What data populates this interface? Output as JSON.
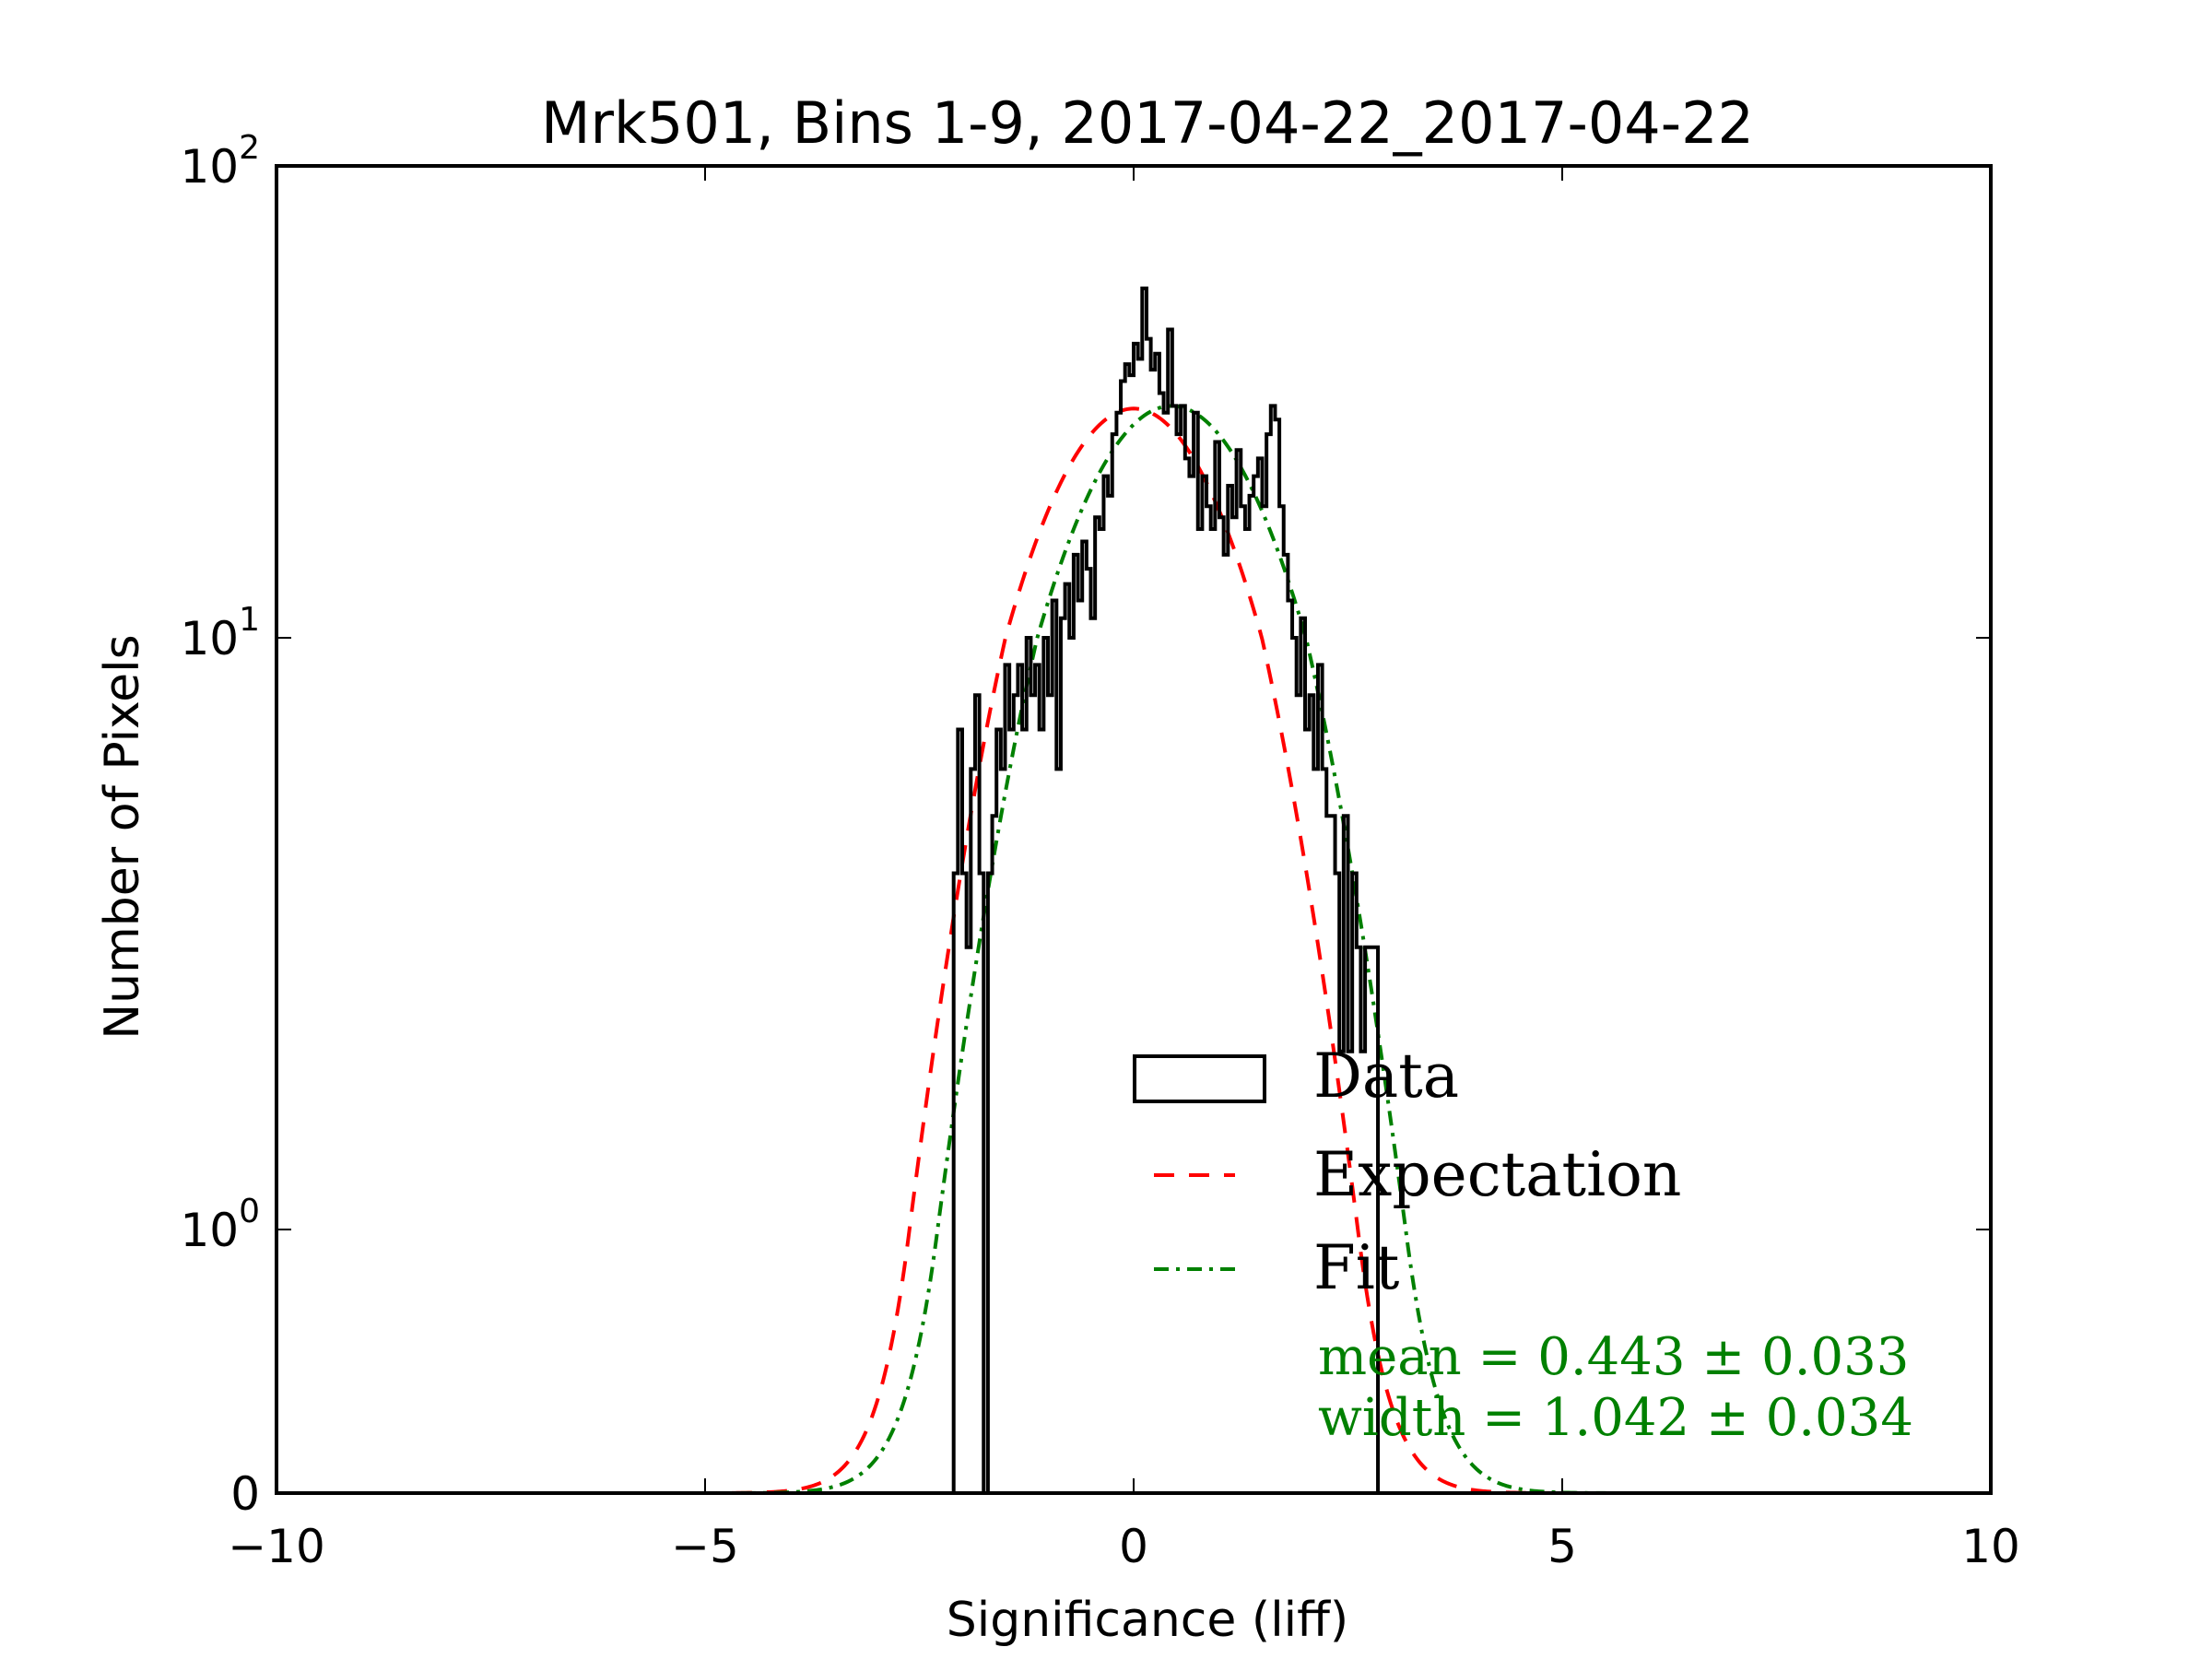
{
  "chart_data": {
    "type": "bar",
    "title": "Mrk501, Bins 1-9, 2017-04-22_2017-04-22",
    "xlabel": "Significance (liff)",
    "ylabel": "Number of Pixels",
    "xlim": [
      -10,
      10
    ],
    "ylim": [
      0,
      100
    ],
    "yscale": "symlog",
    "grid": false,
    "x_ticks": [
      {
        "value": -10,
        "label": "−10"
      },
      {
        "value": -5,
        "label": "−5"
      },
      {
        "value": 0,
        "label": "0"
      },
      {
        "value": 5,
        "label": "5"
      },
      {
        "value": 10,
        "label": "10"
      }
    ],
    "y_ticks": [
      {
        "value": 0,
        "label": "0",
        "base": "",
        "exp": ""
      },
      {
        "value": 1,
        "label": "10^0",
        "base": "10",
        "exp": "0"
      },
      {
        "value": 10,
        "label": "10^1",
        "base": "10",
        "exp": "1"
      },
      {
        "value": 100,
        "label": "10^2",
        "base": "10",
        "exp": "2"
      }
    ],
    "histogram": {
      "name": "Data",
      "color": "#000000",
      "bin_start": -2.1,
      "bin_width": 0.05,
      "counts": [
        4,
        7,
        4,
        3,
        6,
        8,
        4,
        0,
        4,
        5,
        7,
        6,
        9,
        7,
        8,
        9,
        7,
        10,
        8,
        9,
        7,
        10,
        8,
        12,
        6,
        11,
        13,
        10,
        15,
        12,
        16,
        14,
        11,
        18,
        17,
        22,
        20,
        27,
        30,
        35,
        38,
        36,
        42,
        39,
        55,
        43,
        37,
        40,
        33,
        30,
        45,
        31,
        27,
        31,
        24,
        22,
        30,
        17,
        22,
        19,
        17,
        26,
        18,
        15,
        21,
        18,
        25,
        19,
        17,
        20,
        22,
        24,
        19,
        27,
        31,
        29,
        19,
        15,
        12,
        10,
        8,
        11,
        7,
        8,
        6,
        9,
        6,
        5,
        5,
        4,
        2,
        5,
        2,
        4,
        3,
        2,
        3,
        3,
        3
      ]
    },
    "series": [
      {
        "name": "Expectation",
        "type": "gaussian",
        "color": "#ff0000",
        "linestyle": "dashed",
        "amplitude": 30.6,
        "mean": 0.0,
        "width": 1.0
      },
      {
        "name": "Fit",
        "type": "gaussian",
        "color": "#008000",
        "linestyle": "dashdot",
        "amplitude": 31.0,
        "mean": 0.443,
        "width": 1.042
      }
    ],
    "legend": {
      "position": "lower-right",
      "entries": [
        {
          "label": "Data",
          "style": "box",
          "color": "#000000"
        },
        {
          "label": "Expectation",
          "style": "dashed",
          "color": "#ff0000"
        },
        {
          "label": "Fit",
          "style": "dashdot",
          "color": "#008000"
        }
      ]
    },
    "annotations": [
      {
        "text": "mean = 0.443 ± 0.033",
        "color": "#008000"
      },
      {
        "text": "width = 1.042 ± 0.034",
        "color": "#008000"
      }
    ]
  }
}
